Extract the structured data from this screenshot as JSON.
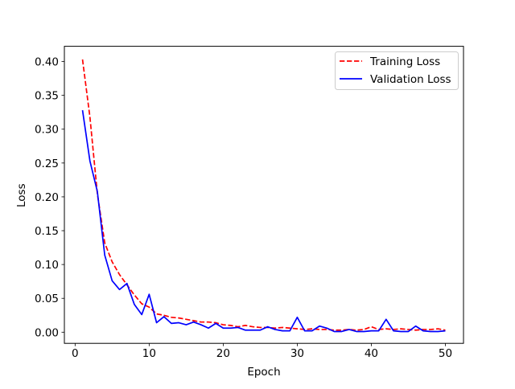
{
  "chart_data": {
    "type": "line",
    "title": "",
    "xlabel": "Epoch",
    "ylabel": "Loss",
    "xlim": [
      -1.45,
      52.45
    ],
    "ylim": [
      -0.0165,
      0.4225
    ],
    "xticks": [
      0,
      10,
      20,
      30,
      40,
      50
    ],
    "yticks": [
      0.0,
      0.05,
      0.1,
      0.15,
      0.2,
      0.25,
      0.3,
      0.35,
      0.4
    ],
    "ytick_labels": [
      "0.00",
      "0.05",
      "0.10",
      "0.15",
      "0.20",
      "0.25",
      "0.30",
      "0.35",
      "0.40"
    ],
    "grid": false,
    "legend_position": "upper right",
    "x": [
      1,
      2,
      3,
      4,
      5,
      6,
      7,
      8,
      9,
      10,
      11,
      12,
      13,
      14,
      15,
      16,
      17,
      18,
      19,
      20,
      21,
      22,
      23,
      24,
      25,
      26,
      27,
      28,
      29,
      30,
      31,
      32,
      33,
      34,
      35,
      36,
      37,
      38,
      39,
      40,
      41,
      42,
      43,
      44,
      45,
      46,
      47,
      48,
      49,
      50
    ],
    "series": [
      {
        "name": "Training Loss",
        "color": "#ff0000",
        "dash": "dashed",
        "values": [
          0.403,
          0.318,
          0.205,
          0.132,
          0.104,
          0.085,
          0.07,
          0.055,
          0.042,
          0.037,
          0.027,
          0.025,
          0.022,
          0.021,
          0.019,
          0.017,
          0.015,
          0.015,
          0.014,
          0.011,
          0.01,
          0.008,
          0.01,
          0.008,
          0.007,
          0.007,
          0.006,
          0.007,
          0.006,
          0.005,
          0.004,
          0.005,
          0.004,
          0.004,
          0.003,
          0.003,
          0.004,
          0.003,
          0.004,
          0.008,
          0.004,
          0.005,
          0.004,
          0.005,
          0.004,
          0.003,
          0.004,
          0.004,
          0.005,
          0.003
        ]
      },
      {
        "name": "Validation Loss",
        "color": "#0000ff",
        "dash": "solid",
        "values": [
          0.328,
          0.253,
          0.208,
          0.114,
          0.076,
          0.063,
          0.072,
          0.041,
          0.026,
          0.056,
          0.014,
          0.023,
          0.013,
          0.014,
          0.011,
          0.015,
          0.011,
          0.006,
          0.013,
          0.006,
          0.006,
          0.007,
          0.003,
          0.003,
          0.003,
          0.008,
          0.004,
          0.002,
          0.002,
          0.022,
          0.002,
          0.002,
          0.009,
          0.006,
          0.001,
          0.001,
          0.004,
          0.001,
          0.001,
          0.002,
          0.002,
          0.019,
          0.002,
          0.001,
          0.001,
          0.009,
          0.002,
          0.001,
          0.001,
          0.002
        ]
      }
    ]
  }
}
